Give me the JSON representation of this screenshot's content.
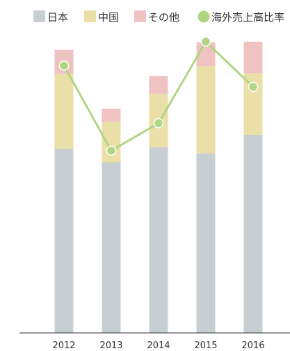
{
  "chart_data": {
    "type": "bar",
    "categories": [
      "2012",
      "2013",
      "2014",
      "2015",
      "2016"
    ],
    "series": [
      {
        "name": "日本",
        "kind": "bar",
        "color": "#c8cfd2",
        "values": [
          269,
          249,
          271,
          262,
          289
        ]
      },
      {
        "name": "中国",
        "kind": "bar",
        "color": "#ebdfa8",
        "values": [
          109,
          59,
          78,
          127,
          90
        ]
      },
      {
        "name": "その他",
        "kind": "bar",
        "color": "#efc3c2",
        "values": [
          35,
          19,
          26,
          35,
          46
        ]
      },
      {
        "name": "海外売上高比率",
        "kind": "line",
        "color": "#b0d683",
        "values": [
          390,
          266,
          306,
          425,
          359
        ]
      }
    ],
    "ylim": [
      0,
      430
    ],
    "grid": false,
    "legend_position": "top"
  }
}
